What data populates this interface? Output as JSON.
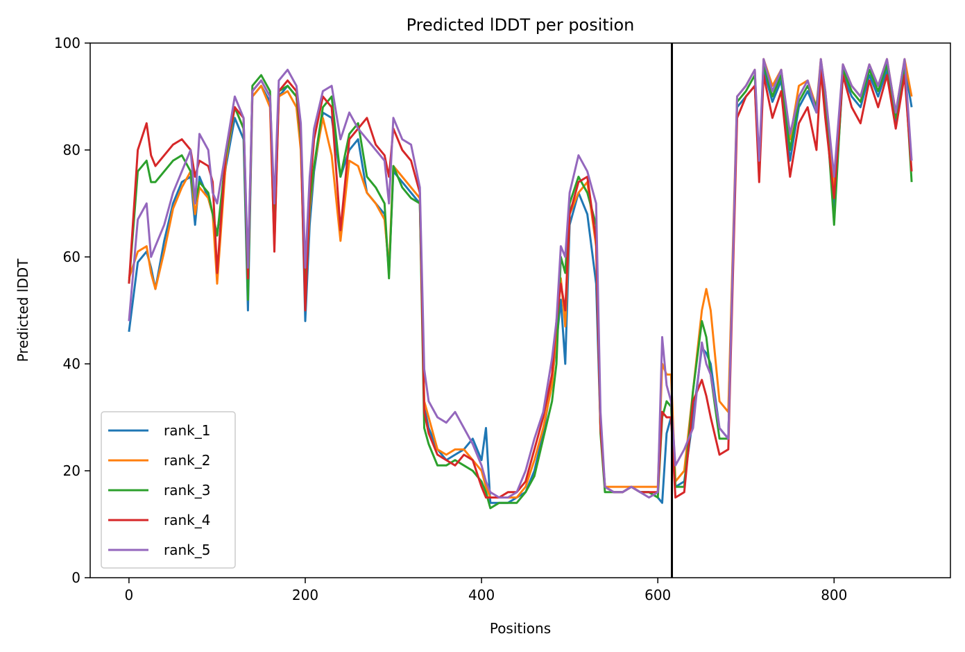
{
  "chart_data": {
    "type": "line",
    "title": "Predicted lDDT per position",
    "xlabel": "Positions",
    "ylabel": "Predicted lDDT",
    "xlim": [
      -44,
      932
    ],
    "ylim": [
      0,
      100
    ],
    "x_ticks": [
      0,
      200,
      400,
      600,
      800
    ],
    "y_ticks": [
      0,
      20,
      40,
      60,
      80,
      100
    ],
    "legend_position": "lower-left",
    "grid": false,
    "vline": {
      "x": 616,
      "color": "#000000"
    },
    "x": [
      0,
      10,
      20,
      25,
      30,
      40,
      50,
      60,
      70,
      75,
      80,
      90,
      95,
      100,
      110,
      120,
      130,
      135,
      140,
      150,
      160,
      165,
      170,
      180,
      190,
      195,
      200,
      205,
      210,
      220,
      230,
      240,
      250,
      260,
      270,
      280,
      290,
      295,
      300,
      310,
      320,
      330,
      335,
      340,
      350,
      360,
      370,
      380,
      390,
      400,
      405,
      410,
      420,
      430,
      440,
      450,
      460,
      470,
      480,
      485,
      490,
      495,
      500,
      510,
      520,
      530,
      535,
      540,
      550,
      560,
      570,
      580,
      590,
      600,
      605,
      610,
      615,
      620,
      630,
      640,
      650,
      655,
      660,
      670,
      680,
      690,
      695,
      700,
      710,
      715,
      720,
      730,
      740,
      750,
      760,
      770,
      780,
      785,
      790,
      800,
      810,
      820,
      830,
      840,
      850,
      860,
      870,
      880,
      888
    ],
    "series": [
      {
        "name": "rank_1",
        "color": "#1f77b4",
        "values": [
          46,
          59,
          61,
          58,
          54,
          63,
          70,
          74,
          75,
          66,
          75,
          71,
          68,
          64,
          77,
          86,
          82,
          50,
          90,
          92,
          89,
          65,
          90,
          92,
          90,
          82,
          48,
          66,
          76,
          87,
          86,
          75,
          80,
          82,
          72,
          70,
          68,
          57,
          76,
          74,
          72,
          70,
          32,
          28,
          24,
          22,
          23,
          24,
          26,
          22,
          28,
          14,
          14,
          14,
          15,
          16,
          20,
          27,
          37,
          44,
          52,
          40,
          66,
          72,
          68,
          55,
          28,
          17,
          16,
          16,
          17,
          16,
          16,
          15,
          14,
          27,
          30,
          17,
          18,
          30,
          43,
          42,
          40,
          28,
          26,
          88,
          89,
          90,
          92,
          76,
          95,
          89,
          93,
          78,
          88,
          91,
          87,
          95,
          89,
          68,
          94,
          90,
          88,
          94,
          90,
          95,
          85,
          96,
          88
        ]
      },
      {
        "name": "rank_2",
        "color": "#ff7f0e",
        "values": [
          56,
          61,
          62,
          57,
          54,
          61,
          69,
          73,
          76,
          68,
          73,
          71,
          68,
          55,
          78,
          88,
          84,
          55,
          90,
          92,
          88,
          62,
          90,
          91,
          88,
          80,
          52,
          69,
          77,
          86,
          79,
          63,
          78,
          77,
          72,
          70,
          67,
          58,
          77,
          75,
          73,
          71,
          33,
          30,
          24,
          23,
          24,
          24,
          22,
          20,
          17,
          15,
          15,
          15,
          15,
          17,
          22,
          28,
          36,
          46,
          56,
          47,
          68,
          72,
          74,
          62,
          28,
          17,
          17,
          17,
          17,
          17,
          17,
          17,
          40,
          38,
          38,
          18,
          20,
          35,
          50,
          54,
          50,
          33,
          31,
          90,
          91,
          92,
          95,
          76,
          97,
          92,
          95,
          82,
          92,
          93,
          88,
          97,
          91,
          73,
          96,
          92,
          90,
          96,
          92,
          97,
          87,
          97,
          90
        ]
      },
      {
        "name": "rank_3",
        "color": "#2ca02c",
        "values": [
          55,
          76,
          78,
          74,
          74,
          76,
          78,
          79,
          76,
          70,
          74,
          72,
          68,
          64,
          79,
          88,
          84,
          52,
          92,
          94,
          91,
          65,
          91,
          92,
          90,
          82,
          55,
          70,
          77,
          88,
          90,
          75,
          83,
          85,
          75,
          73,
          70,
          56,
          77,
          73,
          71,
          70,
          28,
          25,
          21,
          21,
          22,
          21,
          20,
          18,
          16,
          13,
          14,
          14,
          14,
          16,
          19,
          26,
          33,
          40,
          60,
          57,
          70,
          75,
          72,
          66,
          27,
          16,
          16,
          16,
          17,
          16,
          16,
          15,
          30,
          33,
          32,
          17,
          17,
          35,
          48,
          45,
          38,
          26,
          26,
          89,
          90,
          91,
          94,
          75,
          96,
          90,
          94,
          80,
          89,
          92,
          88,
          96,
          90,
          66,
          95,
          91,
          89,
          95,
          91,
          96,
          86,
          96,
          74
        ]
      },
      {
        "name": "rank_4",
        "color": "#d62728",
        "values": [
          55,
          80,
          85,
          79,
          77,
          79,
          81,
          82,
          80,
          75,
          78,
          77,
          74,
          57,
          80,
          88,
          86,
          56,
          91,
          93,
          90,
          61,
          91,
          93,
          91,
          83,
          50,
          72,
          82,
          90,
          88,
          65,
          82,
          84,
          86,
          81,
          79,
          75,
          84,
          80,
          78,
          72,
          31,
          27,
          23,
          22,
          21,
          23,
          22,
          17,
          15,
          15,
          15,
          16,
          16,
          18,
          24,
          30,
          38,
          48,
          55,
          50,
          68,
          74,
          75,
          63,
          28,
          17,
          16,
          16,
          17,
          16,
          16,
          16,
          31,
          30,
          30,
          15,
          16,
          33,
          37,
          34,
          30,
          23,
          24,
          86,
          88,
          90,
          92,
          74,
          94,
          86,
          91,
          75,
          85,
          88,
          80,
          95,
          86,
          71,
          94,
          88,
          85,
          93,
          88,
          94,
          84,
          94,
          76
        ]
      },
      {
        "name": "rank_5",
        "color": "#9467bd",
        "values": [
          48,
          67,
          70,
          60,
          62,
          66,
          72,
          76,
          80,
          70,
          83,
          80,
          72,
          70,
          80,
          90,
          86,
          58,
          91,
          93,
          90,
          70,
          93,
          95,
          92,
          85,
          58,
          75,
          84,
          91,
          92,
          82,
          87,
          84,
          82,
          80,
          78,
          70,
          86,
          82,
          81,
          73,
          39,
          33,
          30,
          29,
          31,
          28,
          25,
          21,
          18,
          16,
          15,
          15,
          16,
          20,
          26,
          31,
          41,
          48,
          62,
          60,
          72,
          79,
          76,
          70,
          31,
          17,
          16,
          16,
          17,
          16,
          15,
          16,
          45,
          36,
          33,
          21,
          24,
          28,
          44,
          40,
          38,
          28,
          26,
          90,
          91,
          92,
          95,
          78,
          97,
          91,
          95,
          83,
          90,
          93,
          87,
          97,
          91,
          75,
          96,
          92,
          90,
          96,
          92,
          97,
          87,
          97,
          78
        ]
      }
    ]
  }
}
